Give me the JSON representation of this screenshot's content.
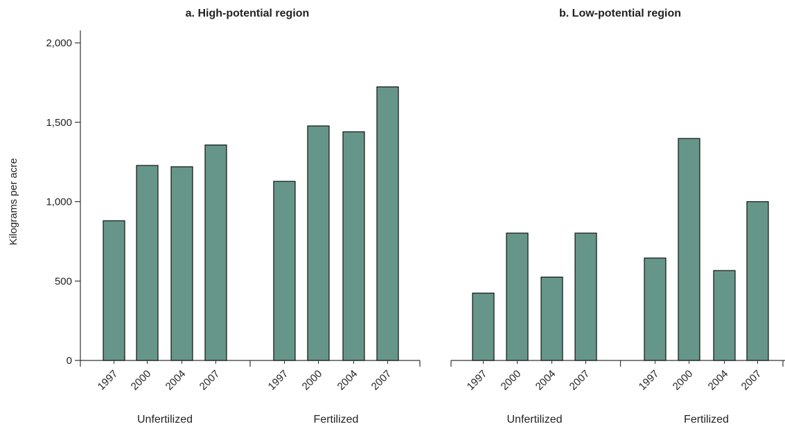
{
  "chart_data": [
    {
      "type": "bar",
      "title": "a. High-potential region",
      "ylabel": "Kilograms per acre",
      "ylim": [
        0,
        2000
      ],
      "yticks": [
        "0",
        "500",
        "1,000",
        "1,500",
        "2,000"
      ],
      "groups": [
        {
          "name": "Unfertilized",
          "categories": [
            "1997",
            "2000",
            "2004",
            "2007"
          ],
          "values": [
            880,
            1228,
            1220,
            1357
          ]
        },
        {
          "name": "Fertilized",
          "categories": [
            "1997",
            "2000",
            "2004",
            "2007"
          ],
          "values": [
            1128,
            1477,
            1440,
            1723
          ]
        }
      ],
      "bar_color": "#66968a"
    },
    {
      "type": "bar",
      "title": "b. Low-potential region",
      "ylabel": "",
      "ylim": [
        0,
        2000
      ],
      "groups": [
        {
          "name": "Unfertilized",
          "categories": [
            "1997",
            "2000",
            "2004",
            "2007"
          ],
          "values": [
            424,
            802,
            525,
            802
          ]
        },
        {
          "name": "Fertilized",
          "categories": [
            "1997",
            "2000",
            "2004",
            "2007"
          ],
          "values": [
            645,
            1398,
            566,
            1000
          ]
        }
      ],
      "bar_color": "#66968a"
    }
  ]
}
